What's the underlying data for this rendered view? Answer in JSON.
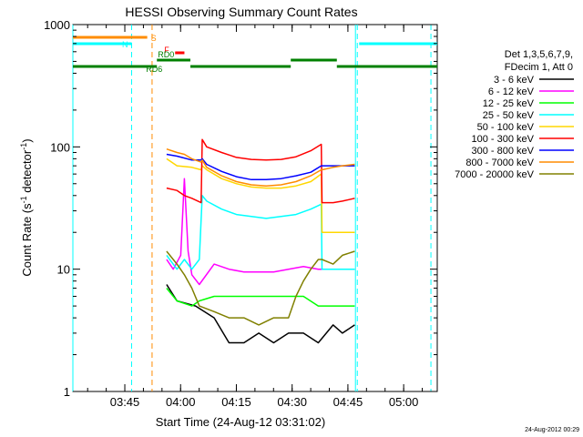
{
  "chart_data": {
    "type": "line",
    "title": "HESSI Observing Summary Count Rates",
    "xlabel": "Start Time (24-Aug-12 03:31:02)",
    "ylabel_main": "Count Rate (s",
    "ylabel_sup1": "-1",
    "ylabel_mid": " detector",
    "ylabel_sup2": "-1",
    "ylabel_end": ")",
    "y_scale": "log",
    "ylim": [
      1,
      1000
    ],
    "xlim_minutes": [
      0,
      98
    ],
    "x_ticks": [
      {
        "label": "03:45",
        "minute": 13.97
      },
      {
        "label": "04:00",
        "minute": 28.97
      },
      {
        "label": "04:15",
        "minute": 43.97
      },
      {
        "label": "04:30",
        "minute": 58.97
      },
      {
        "label": "04:45",
        "minute": 73.97
      },
      {
        "label": "05:00",
        "minute": 88.97
      }
    ],
    "y_ticks": [
      {
        "label": "1",
        "value": 1
      },
      {
        "label": "10",
        "value": 10
      },
      {
        "label": "100",
        "value": 100
      },
      {
        "label": "1000",
        "value": 1000
      }
    ],
    "legend_header": [
      "Det 1,3,5,6,7,9,",
      "FDecim 1, Att 0"
    ],
    "legend_placement": "right",
    "series": [
      {
        "name": "3 - 6 keV",
        "color": "#000000",
        "x": [
          25.2,
          28,
          33,
          38,
          42,
          46,
          50,
          54,
          58,
          62,
          66,
          70,
          72.5,
          75.8
        ],
        "y": [
          7.5,
          5.5,
          5,
          4,
          2.5,
          2.5,
          3,
          2.5,
          3,
          3,
          2.5,
          3.5,
          3,
          3.5
        ]
      },
      {
        "name": "6 - 12 keV",
        "color": "#ff00ff",
        "x": [
          25.2,
          27,
          29,
          30,
          31,
          32,
          34,
          38,
          42,
          46,
          50,
          54,
          58,
          62,
          66,
          70,
          72.5,
          75.8
        ],
        "y": [
          12,
          10,
          13,
          55,
          14,
          9,
          7.5,
          11,
          10,
          9.5,
          9.5,
          9.5,
          10,
          10.5,
          10,
          10,
          10,
          10
        ]
      },
      {
        "name": "12 - 25 keV",
        "color": "#00ff00",
        "x": [
          25.2,
          28,
          32,
          34,
          38,
          42,
          46,
          50,
          54,
          58,
          62,
          66,
          70,
          72.5,
          75.8
        ],
        "y": [
          7,
          5.5,
          5,
          5.5,
          6,
          6,
          6,
          6,
          6,
          6,
          6,
          5,
          5,
          5,
          5
        ]
      },
      {
        "name": "25 - 50 keV",
        "color": "#00ffff",
        "x": [
          25.2,
          28,
          30,
          32,
          34,
          34.8,
          36,
          40,
          44,
          48,
          52,
          56,
          60,
          64,
          66.8,
          67,
          70,
          72.5,
          75.8
        ],
        "y": [
          13,
          10,
          12,
          10,
          12,
          40,
          36,
          31,
          28,
          27,
          26,
          27,
          28,
          31,
          34,
          10,
          10,
          10,
          10
        ]
      },
      {
        "name": "50 - 100 keV",
        "color": "#ffd700",
        "x": [
          25.2,
          28,
          32,
          34.5,
          34.8,
          36,
          40,
          44,
          48,
          52,
          56,
          60,
          64,
          66.8,
          67,
          70,
          72.5,
          75.8
        ],
        "y": [
          80,
          70,
          68,
          65,
          70,
          65,
          55,
          50,
          47,
          46,
          46,
          48,
          52,
          60,
          20,
          20,
          20,
          20
        ]
      },
      {
        "name": "100 - 300 keV",
        "color": "#ff0000",
        "x": [
          25.2,
          28,
          30,
          32,
          34.5,
          34.8,
          36,
          40,
          44,
          48,
          52,
          56,
          60,
          64,
          66.8,
          67,
          70,
          72.5,
          75.8
        ],
        "y": [
          46,
          44,
          40,
          38,
          35,
          115,
          100,
          90,
          82,
          79,
          78,
          79,
          83,
          93,
          105,
          35,
          35,
          36,
          38
        ]
      },
      {
        "name": "300 - 800 keV",
        "color": "#0000ff",
        "x": [
          25.2,
          28,
          32,
          34.5,
          34.8,
          36,
          40,
          44,
          48,
          52,
          56,
          60,
          64,
          66.8,
          67,
          70,
          72.5,
          75.8
        ],
        "y": [
          87,
          84,
          78,
          78,
          80,
          72,
          63,
          57,
          54,
          54,
          55,
          58,
          62,
          70,
          70,
          70,
          70,
          70
        ]
      },
      {
        "name": "800 - 7000 keV",
        "color": "#ff8c00",
        "x": [
          25.2,
          28,
          30,
          32,
          34.5,
          34.8,
          36,
          40,
          44,
          48,
          52,
          56,
          60,
          64,
          66.8,
          67,
          70,
          72.5,
          75.8
        ],
        "y": [
          96,
          90,
          87,
          80,
          75,
          78,
          68,
          58,
          52,
          49,
          48,
          49,
          52,
          58,
          65,
          65,
          68,
          70,
          72
        ]
      },
      {
        "name": "7000 - 20000 keV",
        "color": "#808000",
        "x": [
          25.2,
          28,
          30,
          32,
          34,
          38,
          42,
          46,
          50,
          54,
          58,
          60,
          62,
          64,
          66,
          67,
          70,
          72.5,
          75.8
        ],
        "y": [
          14,
          11,
          9,
          7,
          5,
          4.5,
          4,
          4,
          3.5,
          4,
          4,
          6,
          8,
          10,
          12,
          12,
          11,
          13,
          14
        ]
      }
    ],
    "state_bars": [
      {
        "label": "S",
        "color": "#ff8c00",
        "segments": [
          [
            0,
            20
          ]
        ],
        "level": "top"
      },
      {
        "label": "N",
        "color": "#00ffff",
        "segments": [
          [
            0,
            15.8
          ],
          [
            77,
            98
          ]
        ],
        "level": "second"
      },
      {
        "label": "F",
        "color": "#ff0000",
        "segments": [
          [
            27.5,
            30
          ]
        ],
        "level": "third"
      },
      {
        "label": "RD0",
        "color": "#008000",
        "segments": [
          [
            22.6,
            31.6
          ],
          [
            58.6,
            71
          ]
        ],
        "level": "fourth"
      },
      {
        "label": "RD6",
        "color": "#008000",
        "segments": [
          [
            0,
            22.6
          ],
          [
            31.6,
            58.6
          ],
          [
            71,
            98
          ]
        ],
        "level": "fifth"
      }
    ],
    "vertical_lines": [
      {
        "minute": 0,
        "color": "#00ffff",
        "style": "solid"
      },
      {
        "minute": 15.8,
        "color": "#00ffff",
        "style": "dashed"
      },
      {
        "minute": 21.3,
        "color": "#ff8c00",
        "style": "dashed"
      },
      {
        "minute": 76,
        "color": "#00ffff",
        "style": "solid"
      },
      {
        "minute": 76.5,
        "color": "#00ffff",
        "style": "dashed"
      },
      {
        "minute": 96.3,
        "color": "#00ffff",
        "style": "dashed"
      }
    ]
  },
  "footer_timestamp": "24-Aug-2012 00:29"
}
